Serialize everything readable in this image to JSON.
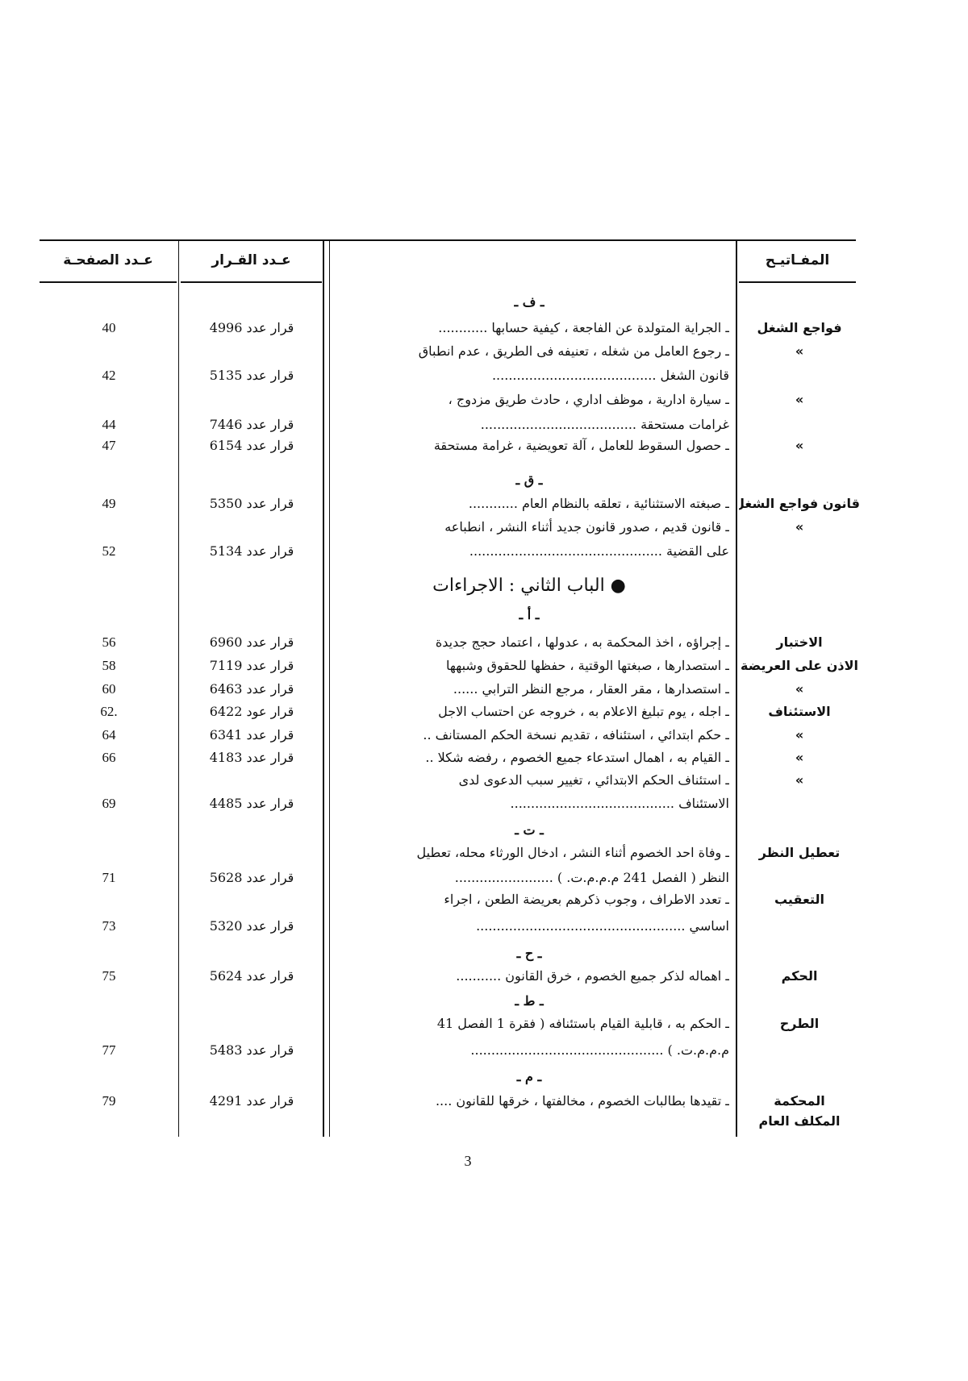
{
  "header": {
    "page_col": "عـدد الصفحـة",
    "decision_col": "عـدد القـرار",
    "keywords_col": "المفـاتيـح"
  },
  "body": [
    {
      "type": "letter",
      "text": "ـ ف ـ"
    },
    {
      "type": "entry",
      "keyword": "فواجع الشغل",
      "lines": [
        "ـ الجراية المتولدة عن الفاجعة ، كيفية حسابها ............"
      ],
      "decision": "قرار عدد 4996",
      "page": "40"
    },
    {
      "type": "entry",
      "keyword": "»",
      "lines": [
        "ـ رجوع العامل من شغله ، تعنيفه فى الطريق ، عدم انطباق",
        "قانون الشغل ........................................"
      ],
      "decision": "قرار عدد 5135",
      "page": "42"
    },
    {
      "type": "entry",
      "keyword": "»",
      "lines": [
        "ـ سيارة ادارية ، موظف اداري ، حادث طريق مزدوج ،",
        "غرامات مستحقة ......................................"
      ],
      "decision": "قرار عدد 7446",
      "page": "44"
    },
    {
      "type": "entry",
      "keyword": "»",
      "lines": [
        "ـ حصول السقوط للعامل ، آلة تعويضية ، غرامة مستحقة"
      ],
      "decision": "قرار عدد 6154",
      "page": "47"
    },
    {
      "type": "letter",
      "text": "ـ ق ـ"
    },
    {
      "type": "entry",
      "keyword": "قانون فواجع الشغل",
      "lines": [
        "ـ صبغته الاستثنائية ، تعلقه بالنظام العام ............"
      ],
      "decision": "قرار عدد 5350",
      "page": "49"
    },
    {
      "type": "entry",
      "keyword": "»",
      "lines": [
        "ـ قانون قديم ، صدور قانون جديد أثناء النشر ، انطباعه",
        "على القضية ..............................................."
      ],
      "decision": "قرار عدد 5134",
      "page": "52"
    },
    {
      "type": "heading",
      "text": "● الباب الثاني : الاجراءات"
    },
    {
      "type": "letter",
      "text": "ـ أ ـ"
    },
    {
      "type": "entry",
      "keyword": "الاختبار",
      "lines": [
        "ـ إجراؤه ، اخذ المحكمة به ، عدولها ، اعتماد حجج جديدة"
      ],
      "decision": "قرار عدد 6960",
      "page": "56"
    },
    {
      "type": "entry",
      "keyword": "الاذن على العريضة",
      "lines": [
        "ـ استصدارها ، صبغتها الوقتية ، حفظها للحقوق وشبهها"
      ],
      "decision": "قرار عدد 7119",
      "page": "58"
    },
    {
      "type": "entry",
      "keyword": "»",
      "lines": [
        "ـ استصدارها ، مقر العقار ، مرجع النظر الترابي ......"
      ],
      "decision": "قرار عدد 6463",
      "page": "60"
    },
    {
      "type": "entry",
      "keyword": "الاستئناف",
      "lines": [
        "ـ اجله ، يوم تبليغ الاعلام به ، خروجه عن احتساب الاجل"
      ],
      "decision": "قرار عود 6422",
      "page": ".62"
    },
    {
      "type": "entry",
      "keyword": "»",
      "lines": [
        "ـ حكم ابتدائي ، استئنافه ، تقديم نسخة الحكم المستانف .."
      ],
      "decision": "قرار عدد 6341",
      "page": "64"
    },
    {
      "type": "entry",
      "keyword": "»",
      "lines": [
        "ـ القيام به ، اهمال استدعاء جميع الخصوم ، رفضه شكلا .."
      ],
      "decision": "قرار عدد 4183",
      "page": "66"
    },
    {
      "type": "entry",
      "keyword": "»",
      "lines": [
        "ـ استئناف الحكم الابتدائي ، تغيير سبب الدعوى لدى",
        "الاستئناف ........................................"
      ],
      "decision": "قرار عدد 4485",
      "page": "69"
    },
    {
      "type": "letter",
      "text": "ـ ت ـ"
    },
    {
      "type": "entry",
      "keyword": "تعطيل النظر",
      "lines": [
        "ـ وفاة احد الخصوم أثناء النشر ، ادخال الورثاء محله، تعطيل",
        "النظر ( الفصل 241 م.م.م.ت. ) ........................"
      ],
      "decision": "قرار عدد 5628",
      "page": "71"
    },
    {
      "type": "entry",
      "keyword": "التعقيب",
      "lines": [
        "ـ تعدد الاطراف ، وجوب ذكرهم بعريضة الطعن ، اجراء",
        "اساسي ..................................................."
      ],
      "decision": "قرار عدد 5320",
      "page": "73"
    },
    {
      "type": "letter",
      "text": "ـ ح ـ"
    },
    {
      "type": "entry",
      "keyword": "الحكم",
      "lines": [
        "ـ اهماله لذكر جميع الخصوم ، خرق القانون ..........."
      ],
      "decision": "قرار عدد 5624",
      "page": "75"
    },
    {
      "type": "letter",
      "text": "ـ ط ـ"
    },
    {
      "type": "entry",
      "keyword": "الطرح",
      "lines": [
        "ـ الحكم به ، قابلية القيام باستئنافه ( فقرة 1 الفصل 41",
        "م.م.م.ت. ) ..............................................."
      ],
      "decision": "قرار عدد 5483",
      "page": "77"
    },
    {
      "type": "letter",
      "text": "ـ م ـ"
    },
    {
      "type": "entry",
      "keyword": "المحكمة",
      "keyword2": "المكلف العام",
      "lines": [
        "ـ تقيدها بطالبات الخصوم ، مخالفتها ، خرقها للقانون ...."
      ],
      "decision": "قرار عدد 4291",
      "page": "79"
    }
  ],
  "page_number": "3"
}
